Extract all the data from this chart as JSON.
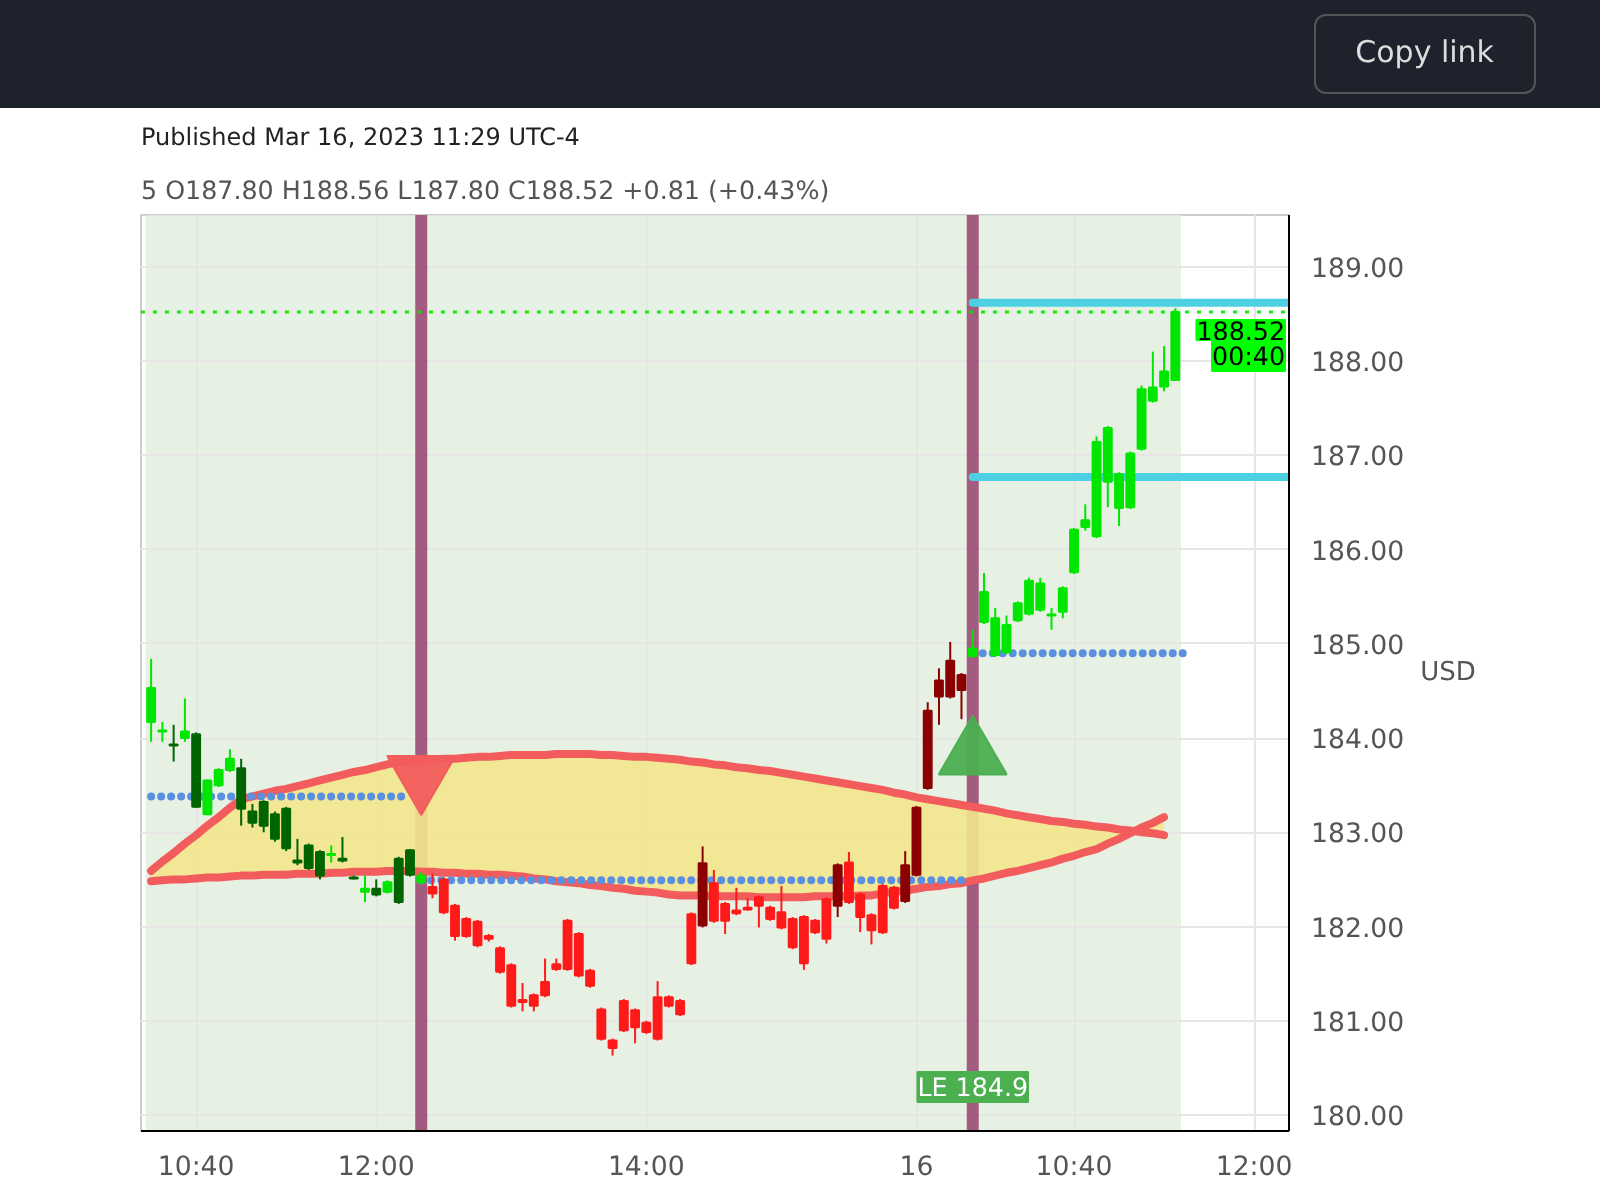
{
  "chart_data": {
    "type": "candlestick",
    "title": "Published Mar 16, 2023 11:29 UTC-4",
    "subtitle": "5  O187.80 H188.56 L187.80 C188.52 +0.81 (+0.43%)",
    "ylabel": "USD",
    "categories": [
      null,
      null,
      null,
      null,
      "10:40",
      null,
      null,
      null,
      null,
      null,
      null,
      null,
      null,
      null,
      null,
      null,
      null,
      null,
      null,
      null,
      "12:00",
      null,
      null,
      null,
      null,
      null,
      null,
      null,
      null,
      null,
      null,
      null,
      null,
      null,
      null,
      null,
      null,
      null,
      null,
      null,
      null,
      null,
      null,
      null,
      "14:00",
      null,
      null,
      null,
      null,
      null,
      null,
      null,
      null,
      null,
      null,
      null,
      null,
      null,
      null,
      null,
      null,
      null,
      null,
      null,
      null,
      null,
      null,
      null,
      "16",
      null,
      null,
      null,
      null,
      null,
      null,
      null,
      null,
      null,
      null,
      null,
      null,
      null,
      "10:40",
      null,
      null,
      null,
      null,
      null,
      null,
      null,
      null,
      null,
      null,
      null,
      null,
      null,
      null,
      null,
      "12:00",
      null,
      null,
      null
    ],
    "ylim": [
      179.83,
      189.55
    ],
    "yticks": [
      {
        "value": 180,
        "label": "180.00"
      },
      {
        "value": 181,
        "label": "181.00"
      },
      {
        "value": 182,
        "label": "182.00"
      },
      {
        "value": 183,
        "label": "183.00"
      },
      {
        "value": 184,
        "label": "184.00"
      },
      {
        "value": 185,
        "label": "185.00"
      },
      {
        "value": 186,
        "label": "186.00"
      },
      {
        "value": 187,
        "label": "187.00"
      },
      {
        "value": 188,
        "label": "188.00"
      },
      {
        "value": 189,
        "label": "189.00"
      }
    ],
    "grid": true,
    "ref_lines": [
      {
        "axis": "y",
        "value": 188.52,
        "color": "#00e600",
        "line_style": "dotted"
      }
    ],
    "annotations": [
      "Copy link",
      "LE 184.9",
      {
        "text": "188.52",
        "y": 188.52
      },
      {
        "text": "00:40",
        "y": 188.52
      }
    ],
    "series": [
      {
        "type": "line",
        "color": "#f25c5c",
        "values": [
          182.59,
          182.69,
          182.78,
          182.88,
          182.97,
          183.07,
          183.16,
          183.26,
          183.35,
          183.38,
          183.41,
          183.44,
          183.46,
          183.49,
          183.52,
          183.55,
          183.58,
          183.61,
          183.64,
          183.66,
          183.69,
          183.72,
          183.75,
          183.76,
          183.76,
          183.77,
          183.78,
          183.78,
          183.79,
          183.8,
          183.8,
          183.81,
          183.82,
          183.82,
          183.82,
          183.82,
          183.83,
          183.83,
          183.83,
          183.83,
          183.82,
          183.82,
          183.81,
          183.8,
          183.8,
          183.79,
          183.78,
          183.77,
          183.75,
          183.74,
          183.72,
          183.71,
          183.69,
          183.68,
          183.66,
          183.65,
          183.63,
          183.61,
          183.59,
          183.57,
          183.55,
          183.53,
          183.51,
          183.49,
          183.47,
          183.45,
          183.42,
          183.4,
          183.37,
          183.35,
          183.33,
          183.31,
          183.29,
          183.27,
          183.25,
          183.23,
          183.2,
          183.18,
          183.16,
          183.14,
          183.12,
          183.11,
          183.09,
          183.08,
          183.06,
          183.05,
          183.03,
          183.02,
          183.0,
          182.99,
          182.97,
          null,
          null,
          null,
          null,
          null,
          null,
          null,
          null,
          null,
          null,
          null
        ],
        "lower": [
          182.48,
          182.49,
          182.5,
          182.5,
          182.51,
          182.52,
          182.52,
          182.53,
          182.54,
          182.54,
          182.55,
          182.55,
          182.55,
          182.56,
          182.56,
          182.56,
          182.57,
          182.57,
          182.58,
          182.58,
          182.58,
          182.59,
          182.59,
          182.59,
          182.58,
          182.58,
          182.57,
          182.57,
          182.56,
          182.56,
          182.55,
          182.55,
          182.54,
          182.53,
          182.51,
          182.5,
          182.48,
          182.47,
          182.46,
          182.44,
          182.43,
          182.41,
          182.4,
          182.38,
          182.37,
          182.36,
          182.34,
          182.33,
          182.33,
          182.33,
          182.32,
          182.32,
          182.32,
          182.32,
          182.31,
          182.31,
          182.31,
          182.31,
          182.31,
          182.32,
          182.32,
          182.32,
          182.32,
          182.33,
          182.33,
          182.35,
          182.37,
          182.38,
          182.4,
          182.42,
          182.43,
          182.45,
          182.46,
          182.49,
          182.51,
          182.54,
          182.57,
          182.59,
          182.62,
          182.65,
          182.68,
          182.72,
          182.75,
          182.79,
          182.82,
          182.88,
          182.93,
          182.99,
          183.05,
          183.1,
          183.16,
          null,
          null,
          null,
          null,
          null,
          null,
          null,
          null,
          null,
          null,
          null
        ],
        "upper": [
          182.59,
          182.69,
          182.78,
          182.88,
          182.97,
          183.07,
          183.16,
          183.26,
          183.35,
          183.38,
          183.41,
          183.44,
          183.46,
          183.49,
          183.52,
          183.55,
          183.58,
          183.61,
          183.64,
          183.66,
          183.69,
          183.72,
          183.75,
          183.76,
          183.76,
          183.77,
          183.78,
          183.78,
          183.79,
          183.8,
          183.8,
          183.81,
          183.82,
          183.82,
          183.82,
          183.82,
          183.83,
          183.83,
          183.83,
          183.83,
          183.82,
          183.82,
          183.81,
          183.8,
          183.8,
          183.79,
          183.78,
          183.77,
          183.75,
          183.74,
          183.72,
          183.71,
          183.69,
          183.68,
          183.66,
          183.65,
          183.63,
          183.61,
          183.59,
          183.57,
          183.55,
          183.53,
          183.51,
          183.49,
          183.47,
          183.45,
          183.42,
          183.4,
          183.37,
          183.35,
          183.33,
          183.31,
          183.29,
          183.27,
          183.25,
          183.23,
          183.2,
          183.18,
          183.16,
          183.14,
          183.12,
          183.11,
          183.09,
          183.08,
          183.06,
          183.05,
          183.03,
          183.02,
          183.0,
          182.99,
          182.97,
          null,
          null,
          null,
          null,
          null,
          null,
          null,
          null,
          null,
          null,
          null
        ]
      },
      {
        "type": "line",
        "color": "#f25c5c",
        "values": [
          182.48,
          182.49,
          182.5,
          182.5,
          182.51,
          182.52,
          182.52,
          182.53,
          182.54,
          182.54,
          182.55,
          182.55,
          182.55,
          182.56,
          182.56,
          182.56,
          182.57,
          182.57,
          182.58,
          182.58,
          182.58,
          182.59,
          182.59,
          182.59,
          182.58,
          182.58,
          182.57,
          182.57,
          182.56,
          182.56,
          182.55,
          182.55,
          182.54,
          182.53,
          182.51,
          182.5,
          182.48,
          182.47,
          182.46,
          182.44,
          182.43,
          182.41,
          182.4,
          182.38,
          182.37,
          182.36,
          182.34,
          182.33,
          182.33,
          182.33,
          182.32,
          182.32,
          182.32,
          182.32,
          182.31,
          182.31,
          182.31,
          182.31,
          182.31,
          182.32,
          182.32,
          182.32,
          182.32,
          182.33,
          182.33,
          182.35,
          182.37,
          182.38,
          182.4,
          182.42,
          182.43,
          182.45,
          182.46,
          182.49,
          182.51,
          182.54,
          182.57,
          182.59,
          182.62,
          182.65,
          182.68,
          182.72,
          182.75,
          182.79,
          182.82,
          182.88,
          182.93,
          182.99,
          183.05,
          183.1,
          183.16,
          null,
          null,
          null,
          null,
          null,
          null,
          null,
          null,
          null,
          null,
          null
        ]
      },
      {
        "type": "line",
        "color": "#5b8fe0",
        "line_style": "dotted",
        "values": [
          183.38,
          183.38,
          183.38,
          183.38,
          183.38,
          183.38,
          183.38,
          183.38,
          183.38,
          183.38,
          183.38,
          183.38,
          183.38,
          183.38,
          183.38,
          183.38,
          183.38,
          183.38,
          183.38,
          183.38,
          183.38,
          183.38,
          183.38,
          183.38,
          null,
          null,
          null,
          null,
          null,
          null,
          null,
          null,
          null,
          null,
          null,
          null,
          null,
          null,
          null,
          null,
          null,
          null,
          null,
          null,
          null,
          null,
          null,
          null,
          null,
          null,
          null,
          null,
          null,
          null,
          null,
          null,
          null,
          null,
          null,
          null,
          null,
          null,
          null,
          null,
          null,
          null,
          null,
          null,
          null,
          null,
          null,
          null,
          null,
          null,
          null,
          null,
          null,
          null,
          null,
          null,
          null,
          null,
          null,
          null,
          null,
          null,
          null,
          null,
          null,
          null,
          null,
          null,
          null,
          null,
          null,
          null,
          null,
          null,
          null,
          null,
          null,
          null
        ]
      },
      {
        "type": "line",
        "color": "#5b8fe0",
        "line_style": "dotted",
        "values": [
          null,
          null,
          null,
          null,
          null,
          null,
          null,
          null,
          null,
          null,
          null,
          null,
          null,
          null,
          null,
          null,
          null,
          null,
          null,
          null,
          null,
          null,
          null,
          null,
          182.49,
          182.49,
          182.49,
          182.49,
          182.49,
          182.49,
          182.49,
          182.49,
          182.49,
          182.49,
          182.49,
          182.49,
          182.49,
          182.49,
          182.49,
          182.49,
          182.49,
          182.49,
          182.49,
          182.49,
          182.49,
          182.49,
          182.49,
          182.49,
          182.49,
          182.49,
          182.49,
          182.49,
          182.49,
          182.49,
          182.49,
          182.49,
          182.49,
          182.49,
          182.49,
          182.49,
          182.49,
          182.49,
          182.49,
          182.49,
          182.49,
          182.49,
          182.49,
          182.49,
          182.49,
          182.49,
          182.49,
          182.49,
          182.49,
          null,
          null,
          null,
          null,
          null,
          null,
          null,
          null,
          null,
          null,
          null,
          null,
          null,
          null,
          null,
          null,
          null,
          null,
          null,
          null,
          null,
          null,
          null,
          null,
          null,
          null,
          null,
          null,
          null
        ]
      },
      {
        "type": "line",
        "color": "#5b8fe0",
        "line_style": "dotted",
        "values": [
          null,
          null,
          null,
          null,
          null,
          null,
          null,
          null,
          null,
          null,
          null,
          null,
          null,
          null,
          null,
          null,
          null,
          null,
          null,
          null,
          null,
          null,
          null,
          null,
          null,
          null,
          null,
          null,
          null,
          null,
          null,
          null,
          null,
          null,
          null,
          null,
          null,
          null,
          null,
          null,
          null,
          null,
          null,
          null,
          null,
          null,
          null,
          null,
          null,
          null,
          null,
          null,
          null,
          null,
          null,
          null,
          null,
          null,
          null,
          null,
          null,
          null,
          null,
          null,
          null,
          null,
          null,
          null,
          null,
          null,
          null,
          null,
          null,
          184.9,
          184.9,
          184.9,
          184.9,
          184.9,
          184.9,
          184.9,
          184.9,
          184.9,
          184.9,
          184.9,
          184.9,
          184.9,
          184.9,
          184.9,
          184.9,
          184.9,
          184.9,
          184.9,
          184.9,
          null,
          null,
          null,
          null,
          null,
          null,
          null,
          null,
          null
        ]
      },
      {
        "type": "line",
        "color": "#4dd0e1",
        "values": [
          null,
          null,
          null,
          null,
          null,
          null,
          null,
          null,
          null,
          null,
          null,
          null,
          null,
          null,
          null,
          null,
          null,
          null,
          null,
          null,
          null,
          null,
          null,
          null,
          null,
          null,
          null,
          null,
          null,
          null,
          null,
          null,
          null,
          null,
          null,
          null,
          null,
          null,
          null,
          null,
          null,
          null,
          null,
          null,
          null,
          null,
          null,
          null,
          null,
          null,
          null,
          null,
          null,
          null,
          null,
          null,
          null,
          null,
          null,
          null,
          null,
          null,
          null,
          null,
          null,
          null,
          null,
          null,
          null,
          null,
          null,
          null,
          null,
          188.62,
          188.62,
          188.62,
          188.62,
          188.62,
          188.62,
          188.62,
          188.62,
          188.62,
          188.62,
          188.62,
          188.62,
          188.62,
          188.62,
          188.62,
          188.62,
          188.62,
          188.62,
          188.62,
          188.62,
          188.62,
          188.62,
          188.62,
          188.62,
          188.62,
          188.62,
          188.62,
          188.62,
          188.62
        ]
      },
      {
        "type": "line",
        "color": "#4dd0e1",
        "values": [
          null,
          null,
          null,
          null,
          null,
          null,
          null,
          null,
          null,
          null,
          null,
          null,
          null,
          null,
          null,
          null,
          null,
          null,
          null,
          null,
          null,
          null,
          null,
          null,
          null,
          null,
          null,
          null,
          null,
          null,
          null,
          null,
          null,
          null,
          null,
          null,
          null,
          null,
          null,
          null,
          null,
          null,
          null,
          null,
          null,
          null,
          null,
          null,
          null,
          null,
          null,
          null,
          null,
          null,
          null,
          null,
          null,
          null,
          null,
          null,
          null,
          null,
          null,
          null,
          null,
          null,
          null,
          null,
          null,
          null,
          null,
          null,
          null,
          186.77,
          186.77,
          186.77,
          186.77,
          186.77,
          186.77,
          186.77,
          186.77,
          186.77,
          186.77,
          186.77,
          186.77,
          186.77,
          186.77,
          186.77,
          186.77,
          186.77,
          186.77,
          186.77,
          186.77,
          186.77,
          186.77,
          186.77,
          186.77,
          186.77,
          186.77,
          186.77,
          186.77,
          186.77
        ]
      },
      {
        "type": "scatter",
        "marker": "triangle_down",
        "color": "#f25c5c",
        "values": [
          null,
          null,
          null,
          null,
          null,
          null,
          null,
          null,
          null,
          null,
          null,
          null,
          null,
          null,
          null,
          null,
          null,
          null,
          null,
          null,
          null,
          null,
          null,
          null,
          183.6,
          null,
          null,
          null,
          null,
          null,
          null,
          null,
          null,
          null,
          null,
          null,
          null,
          null,
          null,
          null,
          null,
          null,
          null,
          null,
          null,
          null,
          null,
          null,
          null,
          null,
          null,
          null,
          null,
          null,
          null,
          null,
          null,
          null,
          null,
          null,
          null,
          null,
          null,
          null,
          null,
          null,
          null,
          null,
          null,
          null,
          null,
          null,
          null,
          null,
          null,
          null,
          null,
          null,
          null,
          null,
          null,
          null,
          null,
          null,
          null,
          null,
          null,
          null,
          null,
          null,
          null,
          null,
          null,
          null,
          null,
          null,
          null,
          null,
          null,
          null,
          null,
          null
        ]
      },
      {
        "type": "scatter",
        "marker": "triangle",
        "color": "#4caf50",
        "values": [
          null,
          null,
          null,
          null,
          null,
          null,
          null,
          null,
          null,
          null,
          null,
          null,
          null,
          null,
          null,
          null,
          null,
          null,
          null,
          null,
          null,
          null,
          null,
          null,
          null,
          null,
          null,
          null,
          null,
          null,
          null,
          null,
          null,
          null,
          null,
          null,
          null,
          null,
          null,
          null,
          null,
          null,
          null,
          null,
          null,
          null,
          null,
          null,
          null,
          null,
          null,
          null,
          null,
          null,
          null,
          null,
          null,
          null,
          null,
          null,
          null,
          null,
          null,
          null,
          null,
          null,
          null,
          null,
          null,
          null,
          null,
          null,
          null,
          183.82,
          null,
          null,
          null,
          null,
          null,
          null,
          null,
          null,
          null,
          null,
          null,
          null,
          null,
          null,
          null,
          null,
          null,
          null,
          null,
          null,
          null,
          null,
          null,
          null,
          null,
          null,
          null,
          null
        ]
      },
      {
        "ohlc": [
          [
            184.17,
            184.84,
            183.96,
            184.53
          ],
          [
            184.07,
            184.17,
            183.96,
            184.08
          ],
          [
            183.93,
            184.14,
            183.75,
            183.92
          ],
          [
            184.0,
            184.42,
            183.96,
            184.07
          ],
          [
            184.04,
            184.06,
            183.26,
            183.27
          ],
          [
            183.19,
            183.56,
            183.19,
            183.55
          ],
          [
            183.5,
            183.68,
            183.48,
            183.66
          ],
          [
            183.66,
            183.88,
            183.64,
            183.78
          ],
          [
            183.68,
            183.78,
            183.07,
            183.25
          ],
          [
            183.22,
            183.3,
            183.05,
            183.1
          ],
          [
            183.32,
            183.34,
            183.0,
            183.07
          ],
          [
            183.19,
            183.22,
            182.9,
            182.93
          ],
          [
            183.25,
            183.27,
            182.8,
            182.83
          ],
          [
            182.7,
            182.93,
            182.65,
            182.68
          ],
          [
            182.86,
            182.88,
            182.6,
            182.62
          ],
          [
            182.79,
            182.81,
            182.5,
            182.54
          ],
          [
            182.76,
            182.86,
            182.68,
            182.77
          ],
          [
            182.72,
            182.95,
            182.68,
            182.7
          ],
          [
            182.52,
            182.54,
            182.5,
            182.51
          ],
          [
            182.37,
            182.54,
            182.26,
            182.4
          ],
          [
            182.4,
            182.5,
            182.32,
            182.34
          ],
          [
            182.37,
            182.49,
            182.35,
            182.47
          ],
          [
            182.72,
            182.74,
            182.24,
            182.26
          ],
          [
            182.55,
            182.82,
            182.53,
            182.81
          ],
          [
            182.47,
            182.58,
            182.45,
            182.54
          ],
          [
            182.42,
            182.56,
            182.3,
            182.35
          ],
          [
            182.5,
            182.52,
            182.13,
            182.15
          ],
          [
            182.22,
            182.24,
            181.85,
            181.9
          ],
          [
            182.08,
            182.1,
            181.88,
            181.9
          ],
          [
            182.05,
            182.07,
            181.78,
            181.8
          ],
          [
            181.9,
            181.92,
            181.84,
            181.87
          ],
          [
            181.77,
            181.79,
            181.5,
            181.52
          ],
          [
            181.59,
            181.61,
            181.14,
            181.16
          ],
          [
            181.22,
            181.4,
            181.1,
            181.2
          ],
          [
            181.27,
            181.29,
            181.1,
            181.16
          ],
          [
            181.41,
            181.66,
            181.25,
            181.27
          ],
          [
            181.6,
            181.66,
            181.53,
            181.55
          ],
          [
            182.06,
            182.08,
            181.53,
            181.55
          ],
          [
            181.92,
            181.94,
            181.46,
            181.48
          ],
          [
            181.53,
            181.55,
            181.35,
            181.37
          ],
          [
            181.12,
            181.14,
            180.79,
            180.81
          ],
          [
            180.79,
            180.81,
            180.63,
            180.71
          ],
          [
            181.21,
            181.23,
            180.88,
            180.9
          ],
          [
            181.11,
            181.13,
            180.76,
            180.93
          ],
          [
            180.98,
            181.0,
            180.86,
            180.88
          ],
          [
            181.25,
            181.42,
            180.79,
            180.81
          ],
          [
            181.25,
            181.27,
            181.14,
            181.16
          ],
          [
            181.21,
            181.23,
            181.05,
            181.07
          ],
          [
            182.13,
            182.15,
            181.59,
            181.61
          ],
          [
            182.01,
            182.85,
            181.99,
            182.67
          ],
          [
            182.46,
            182.6,
            182.04,
            182.06
          ],
          [
            182.24,
            182.26,
            181.92,
            182.06
          ],
          [
            182.17,
            182.41,
            182.12,
            182.14
          ],
          [
            182.2,
            182.3,
            182.17,
            182.18
          ],
          [
            182.31,
            182.33,
            181.99,
            182.22
          ],
          [
            182.2,
            182.22,
            182.06,
            182.08
          ],
          [
            182.15,
            182.43,
            181.97,
            181.99
          ],
          [
            182.08,
            182.1,
            181.76,
            181.78
          ],
          [
            182.1,
            182.12,
            181.54,
            181.61
          ],
          [
            182.06,
            182.08,
            181.92,
            181.94
          ],
          [
            182.29,
            182.31,
            181.82,
            181.87
          ],
          [
            182.22,
            182.67,
            182.1,
            182.65
          ],
          [
            182.68,
            182.79,
            182.24,
            182.26
          ],
          [
            182.34,
            182.36,
            181.94,
            182.1
          ],
          [
            182.12,
            182.14,
            181.81,
            181.96
          ],
          [
            182.43,
            182.45,
            181.92,
            181.94
          ],
          [
            182.41,
            182.43,
            182.18,
            182.2
          ],
          [
            182.27,
            182.8,
            182.25,
            182.65
          ],
          [
            182.55,
            183.28,
            182.53,
            183.26
          ],
          [
            183.47,
            184.38,
            183.45,
            184.29
          ],
          [
            184.44,
            184.74,
            184.14,
            184.61
          ],
          [
            184.44,
            185.02,
            184.42,
            184.82
          ],
          [
            184.67,
            184.69,
            184.2,
            184.51
          ],
          [
            184.87,
            185.15,
            184.85,
            184.95
          ],
          [
            185.23,
            185.75,
            185.21,
            185.55
          ],
          [
            184.88,
            185.38,
            184.86,
            185.27
          ],
          [
            184.91,
            185.3,
            184.89,
            185.2
          ],
          [
            185.25,
            185.45,
            185.23,
            185.43
          ],
          [
            185.32,
            185.7,
            185.3,
            185.67
          ],
          [
            185.36,
            185.7,
            185.34,
            185.64
          ],
          [
            185.3,
            185.38,
            185.15,
            185.31
          ],
          [
            185.34,
            185.61,
            185.27,
            185.59
          ],
          [
            185.76,
            186.23,
            185.74,
            186.21
          ],
          [
            186.24,
            186.48,
            186.2,
            186.31
          ],
          [
            186.14,
            187.2,
            186.12,
            187.14
          ],
          [
            186.72,
            187.31,
            186.45,
            187.29
          ],
          [
            186.44,
            186.82,
            186.25,
            186.8
          ],
          [
            186.45,
            187.04,
            186.43,
            187.02
          ],
          [
            187.07,
            187.74,
            187.05,
            187.7
          ],
          [
            187.58,
            188.1,
            187.56,
            187.72
          ],
          [
            187.73,
            188.16,
            187.68,
            187.89
          ],
          [
            187.8,
            188.56,
            187.8,
            188.52
          ],
          null,
          null,
          null,
          null,
          null,
          null,
          null,
          null,
          null,
          null
        ],
        "colors": [
          "#00e600",
          "#00e600",
          "#006400",
          "#00e600",
          "#006400",
          "#00e600",
          "#00e600",
          "#00e600",
          "#006400",
          "#006400",
          "#006400",
          "#006400",
          "#006400",
          "#006400",
          "#006400",
          "#006400",
          "#00e600",
          "#006400",
          "#006400",
          "#00e600",
          "#006400",
          "#00e600",
          "#006400",
          "#006400",
          "#00e600",
          "#ff1a1a",
          "#ff1a1a",
          "#ff1a1a",
          "#ff1a1a",
          "#ff1a1a",
          "#ff1a1a",
          "#ff1a1a",
          "#ff1a1a",
          "#ff1a1a",
          "#ff1a1a",
          "#ff1a1a",
          "#ff1a1a",
          "#ff1a1a",
          "#ff1a1a",
          "#ff1a1a",
          "#ff1a1a",
          "#ff1a1a",
          "#ff1a1a",
          "#ff1a1a",
          "#ff1a1a",
          "#ff1a1a",
          "#ff1a1a",
          "#ff1a1a",
          "#ff1a1a",
          "#8b0000",
          "#ff1a1a",
          "#ff1a1a",
          "#ff1a1a",
          "#ff1a1a",
          "#ff1a1a",
          "#ff1a1a",
          "#ff1a1a",
          "#ff1a1a",
          "#ff1a1a",
          "#ff1a1a",
          "#ff1a1a",
          "#8b0000",
          "#ff1a1a",
          "#ff1a1a",
          "#ff1a1a",
          "#ff1a1a",
          "#ff1a1a",
          "#8b0000",
          "#8b0000",
          "#8b0000",
          "#8b0000",
          "#8b0000",
          "#8b0000",
          "#00e600",
          "#00e600",
          "#00e600",
          "#00e600",
          "#00e600",
          "#00e600",
          "#00e600",
          "#00e600",
          "#00e600",
          "#00e600",
          "#00e600",
          "#00e600",
          "#00e600",
          "#00e600",
          "#00e600",
          "#00e600",
          "#00e600",
          "#00e600",
          "#00e600",
          null,
          null,
          null,
          null,
          null,
          null,
          null,
          null,
          null,
          null
        ]
      }
    ]
  }
}
